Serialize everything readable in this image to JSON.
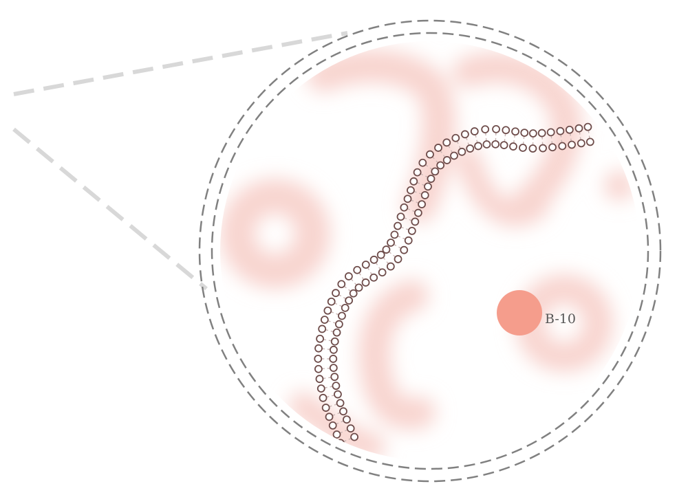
{
  "diagram": {
    "particle": {
      "label": "B-10"
    },
    "colors": {
      "background": "#ffffff",
      "zoom_lines": "#d8d8d8",
      "lens_rings": "#808080",
      "tissue_blobs": "#f8d4cf",
      "membrane_heads": "#6e4c4a",
      "membrane_tails": "#c9b5b3",
      "particle_fill": "#f59d8c",
      "label_text": "#555555"
    },
    "icons": {
      "zoom": "magnifier-callout",
      "particle": "boron-10-atom",
      "membrane": "lipid-bilayer"
    }
  }
}
